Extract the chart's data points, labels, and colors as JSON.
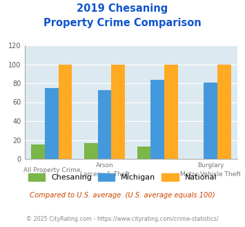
{
  "title_line1": "2019 Chesaning",
  "title_line2": "Property Crime Comparison",
  "top_labels": [
    "",
    "Arson",
    "",
    "Burglary"
  ],
  "bot_labels": [
    "All Property Crime",
    "Larceny & Theft",
    "",
    "Motor Vehicle Theft"
  ],
  "groups": [
    {
      "name": "All Property Crime",
      "chesaning": 15,
      "michigan": 75,
      "national": 100
    },
    {
      "name": "Arson / Larceny & Theft",
      "chesaning": 17,
      "michigan": 73,
      "national": 100
    },
    {
      "name": "Burglary",
      "chesaning": 13,
      "michigan": 84,
      "national": 100
    },
    {
      "name": "Motor Vehicle Theft",
      "chesaning": 0,
      "michigan": 81,
      "national": 100
    }
  ],
  "chesaning_color": "#7ab648",
  "michigan_color": "#4499dd",
  "national_color": "#ffaa22",
  "bg_color": "#dce9f0",
  "title_color": "#1155cc",
  "note_color": "#cc4400",
  "footer_color": "#888888",
  "ylim": [
    0,
    120
  ],
  "yticks": [
    0,
    20,
    40,
    60,
    80,
    100,
    120
  ],
  "note": "Compared to U.S. average. (U.S. average equals 100)",
  "footer": "© 2025 CityRating.com - https://www.cityrating.com/crime-statistics/",
  "legend_labels": [
    "Chesaning",
    "Michigan",
    "National"
  ]
}
